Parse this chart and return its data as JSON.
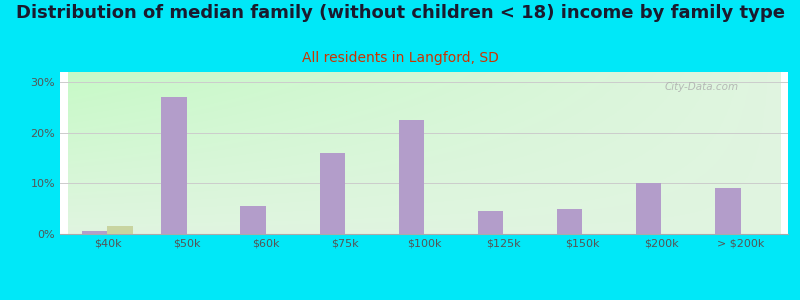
{
  "title": "Distribution of median family (without children < 18) income by family type",
  "subtitle": "All residents in Langford, SD",
  "categories": [
    "$40k",
    "$50k",
    "$60k",
    "$75k",
    "$100k",
    "$125k",
    "$150k",
    "$200k",
    "> $200k"
  ],
  "married_couple": [
    0.5,
    27.0,
    5.5,
    16.0,
    22.5,
    4.5,
    5.0,
    10.0,
    9.0
  ],
  "female_no_husband": [
    1.5,
    0.0,
    0.0,
    0.0,
    0.0,
    0.0,
    0.0,
    0.0,
    0.0
  ],
  "married_color": "#b39dca",
  "female_color": "#c8d4a0",
  "background_outer": "#00e8f8",
  "title_color": "#1a1a2e",
  "subtitle_color": "#cc3300",
  "tick_color": "#555555",
  "grid_color": "#cccccc",
  "ylim": [
    0,
    32
  ],
  "yticks": [
    0,
    10,
    20,
    30
  ],
  "bar_width": 0.32,
  "title_fontsize": 13,
  "subtitle_fontsize": 10,
  "legend_fontsize": 9,
  "tick_fontsize": 8,
  "watermark": "City-Data.com"
}
